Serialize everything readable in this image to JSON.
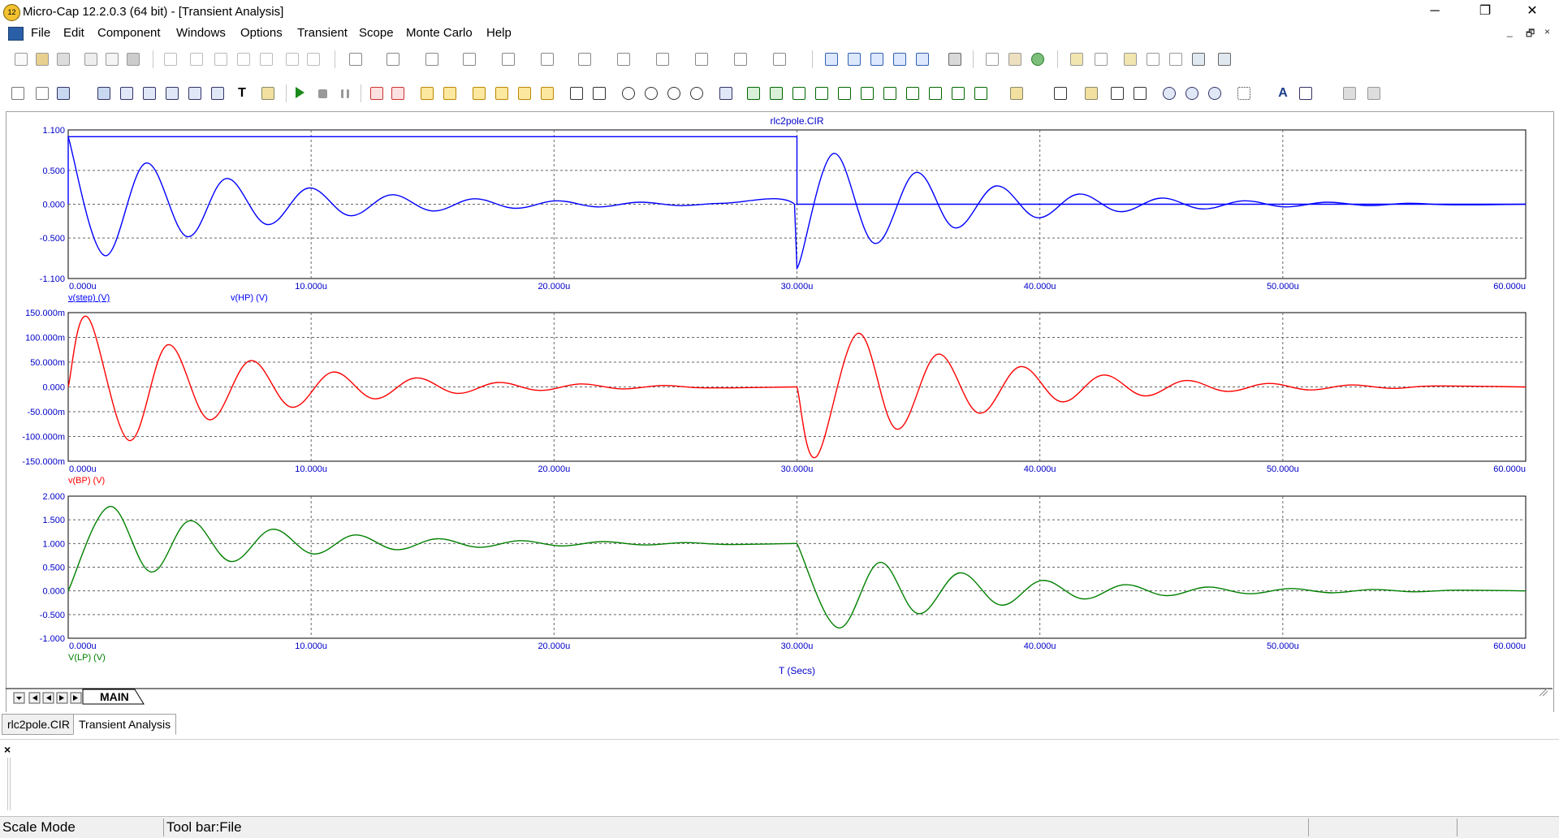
{
  "window": {
    "app_icon_text": "12",
    "title": "Micro-Cap 12.2.0.3 (64 bit) - [Transient Analysis]",
    "minimize": "─",
    "restore": "❐",
    "close": "✕"
  },
  "menu": [
    "File",
    "Edit",
    "Component",
    "Windows",
    "Options",
    "Transient",
    "Scope",
    "Monte Carlo",
    "Help"
  ],
  "mdi_controls": [
    "_",
    "🗗",
    "×"
  ],
  "plot": {
    "title": "rlc2pole.CIR",
    "x_axis_title": "T (Secs)",
    "grid": "dotted",
    "panels": [
      {
        "name": "hp-step-panel",
        "y_ticks": [
          "1.100",
          "0.500",
          "0.000",
          "-0.500",
          "-1.100"
        ],
        "x_ticks": [
          "0.000u",
          "10.000u",
          "20.000u",
          "30.000u",
          "40.000u",
          "50.000u",
          "60.000u"
        ],
        "legend": [
          "v(step) (V)",
          "v(HP) (V)"
        ]
      },
      {
        "name": "bp-panel",
        "y_ticks": [
          "150.000m",
          "100.000m",
          "50.000m",
          "0.000",
          "-50.000m",
          "-100.000m",
          "-150.000m"
        ],
        "x_ticks": [
          "0.000u",
          "10.000u",
          "20.000u",
          "30.000u",
          "40.000u",
          "50.000u",
          "60.000u"
        ],
        "legend": [
          "v(BP) (V)"
        ]
      },
      {
        "name": "lp-panel",
        "y_ticks": [
          "2.000",
          "1.500",
          "1.000",
          "0.500",
          "0.000",
          "-0.500",
          "-1.000"
        ],
        "x_ticks": [
          "0.000u",
          "10.000u",
          "20.000u",
          "30.000u",
          "40.000u",
          "50.000u",
          "60.000u"
        ],
        "legend": [
          "V(LP) (V)"
        ]
      }
    ]
  },
  "chart_data": [
    {
      "type": "line",
      "title": "rlc2pole.CIR",
      "xlabel": "",
      "ylabel": "",
      "x_unit": "us",
      "xlim": [
        0,
        60
      ],
      "ylim": [
        -1.1,
        1.1
      ],
      "series": [
        {
          "name": "v(step) (V)",
          "color": "#0000ff",
          "x": [
            0,
            0,
            30,
            30,
            60
          ],
          "y": [
            0,
            1,
            1,
            0,
            0
          ]
        },
        {
          "name": "v(HP) (V)",
          "color": "#0000ff",
          "x": [
            0,
            1.5,
            3.2,
            4.9,
            6.5,
            8.2,
            9.9,
            11.6,
            13.3,
            15,
            16.7,
            18.4,
            20.1,
            21.8,
            23.5,
            25.2,
            27,
            29.9,
            30,
            31.5,
            33.2,
            34.9,
            36.5,
            38.2,
            39.9,
            41.6,
            43.3,
            45,
            46.7,
            48.4,
            50.1,
            51.8,
            53.5,
            55.2,
            57,
            60
          ],
          "y": [
            1,
            -0.76,
            0.61,
            -0.48,
            0.38,
            -0.3,
            0.24,
            -0.17,
            0.14,
            -0.1,
            0.08,
            -0.06,
            0.05,
            -0.04,
            0.03,
            -0.02,
            0.015,
            0,
            -0.95,
            0.75,
            -0.58,
            0.47,
            -0.35,
            0.27,
            -0.2,
            0.15,
            -0.11,
            0.09,
            -0.07,
            0.05,
            -0.04,
            0.03,
            -0.02,
            0.015,
            -0.01,
            0
          ]
        }
      ]
    },
    {
      "type": "line",
      "xlabel": "",
      "ylabel": "",
      "x_unit": "us",
      "xlim": [
        0,
        60
      ],
      "ylim": [
        -0.15,
        0.15
      ],
      "series": [
        {
          "name": "v(BP) (V)",
          "color": "#ff0000",
          "x": [
            0,
            0.8,
            2.5,
            4.1,
            5.8,
            7.5,
            9.2,
            10.9,
            12.6,
            14.3,
            16,
            17.7,
            19.4,
            21.1,
            22.8,
            24.5,
            26.2,
            29.9,
            30,
            30.8,
            32.5,
            34.1,
            35.8,
            37.5,
            39.2,
            40.9,
            42.6,
            44.3,
            46,
            47.7,
            49.4,
            51.1,
            52.8,
            54.5,
            56.2,
            60
          ],
          "y": [
            0,
            0.141,
            -0.108,
            0.085,
            -0.066,
            0.053,
            -0.041,
            0.03,
            -0.024,
            0.018,
            -0.013,
            0.009,
            -0.007,
            0.006,
            -0.004,
            0.003,
            -0.002,
            0,
            0,
            -0.141,
            0.108,
            -0.085,
            0.066,
            -0.053,
            0.041,
            -0.03,
            0.024,
            -0.018,
            0.013,
            -0.009,
            0.007,
            -0.006,
            0.004,
            -0.003,
            0.002,
            0
          ]
        }
      ]
    },
    {
      "type": "line",
      "xlabel": "T (Secs)",
      "ylabel": "",
      "x_unit": "us",
      "xlim": [
        0,
        60
      ],
      "ylim": [
        -1.0,
        2.0
      ],
      "series": [
        {
          "name": "V(LP) (V)",
          "color": "#008000",
          "x": [
            0,
            1.7,
            3.4,
            5,
            6.7,
            8.4,
            10.1,
            11.8,
            13.5,
            15.2,
            16.9,
            18.6,
            20.3,
            22,
            23.7,
            25.4,
            27.1,
            29.9,
            30,
            31.7,
            33.4,
            35,
            36.7,
            38.4,
            40.1,
            41.8,
            43.5,
            45.2,
            46.9,
            48.6,
            50.3,
            52,
            53.7,
            55.4,
            57.1,
            60
          ],
          "y": [
            0,
            1.78,
            0.4,
            1.48,
            0.62,
            1.3,
            0.78,
            1.18,
            0.87,
            1.1,
            0.92,
            1.06,
            0.95,
            1.04,
            0.97,
            1.02,
            0.98,
            1,
            1,
            -0.78,
            0.6,
            -0.48,
            0.38,
            -0.3,
            0.22,
            -0.17,
            0.13,
            -0.1,
            0.08,
            -0.06,
            0.05,
            -0.04,
            0.03,
            -0.02,
            0.015,
            0
          ]
        }
      ]
    }
  ],
  "sheet_tab": "MAIN",
  "bottom_tabs": [
    "rlc2pole.CIR",
    "Transient Analysis"
  ],
  "output_close": "×",
  "status": {
    "mode": "Scale Mode",
    "toolbar_text": "Tool bar:File"
  }
}
